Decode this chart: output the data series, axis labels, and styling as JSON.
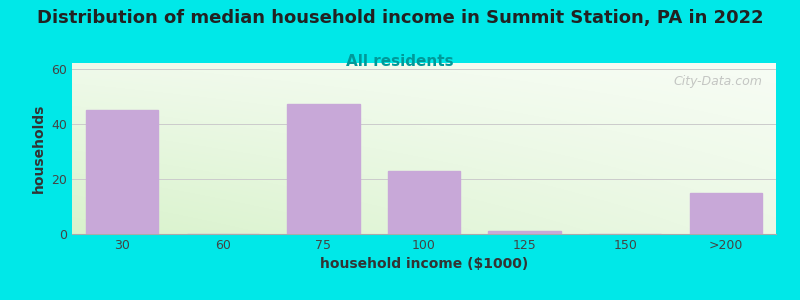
{
  "title": "Distribution of median household income in Summit Station, PA in 2022",
  "subtitle": "All residents",
  "xlabel": "household income ($1000)",
  "ylabel": "households",
  "categories": [
    "30",
    "60",
    "75",
    "100",
    "125",
    "150",
    ">200"
  ],
  "values": [
    45,
    0,
    47,
    23,
    1,
    0,
    15
  ],
  "bar_color": "#c8a8d8",
  "title_fontsize": 13,
  "subtitle_fontsize": 11,
  "subtitle_color": "#009999",
  "axis_label_fontsize": 10,
  "tick_fontsize": 9,
  "ylim": [
    0,
    62
  ],
  "yticks": [
    0,
    20,
    40,
    60
  ],
  "background_color": "#00e8e8",
  "grid_color": "#cccccc",
  "watermark_text": "City-Data.com",
  "bar_width": 0.72
}
